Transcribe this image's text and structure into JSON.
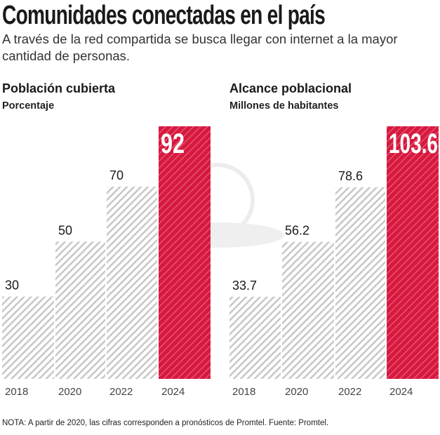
{
  "header": {
    "title": "Comunidades conectadas en el país",
    "subtitle": "A través de la red compartida se busca llegar con internet a la mayor cantidad de personas."
  },
  "colors": {
    "highlight": "#d7193f",
    "hatch": "#c8c8c8",
    "text": "#1a1a1a"
  },
  "chart_data": [
    {
      "type": "bar",
      "title": "Población cubierta",
      "subtitle": "Porcentaje",
      "categories": [
        "2018",
        "2020",
        "2022",
        "2024"
      ],
      "values": [
        30,
        50,
        70,
        92
      ],
      "labels": [
        "30",
        "50",
        "70",
        "92"
      ],
      "highlight_index": 3,
      "ylim": [
        0,
        92
      ],
      "grid": false
    },
    {
      "type": "bar",
      "title": "Alcance poblacional",
      "subtitle": "Millones de habitantes",
      "categories": [
        "2018",
        "2020",
        "2022",
        "2024"
      ],
      "values": [
        33.7,
        56.2,
        78.6,
        103.6
      ],
      "labels": [
        "33.7",
        "56.2",
        "78.6",
        "103.6"
      ],
      "highlight_index": 3,
      "ylim": [
        0,
        103.6
      ],
      "grid": false
    }
  ],
  "footer": {
    "note": "NOTA: A partir de 2020, las cifras corresponden a pronósticos de Promtel. Fuente: Promtel."
  }
}
